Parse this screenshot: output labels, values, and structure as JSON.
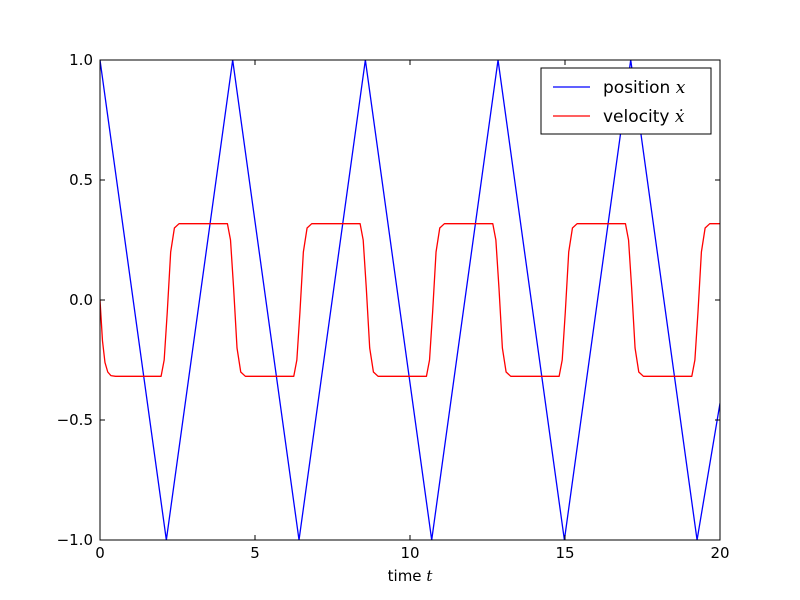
{
  "chart_data": {
    "type": "line",
    "title": "",
    "xlabel": "time",
    "xlabel_var": "t",
    "ylabel": "",
    "xlim": [
      0,
      20
    ],
    "ylim": [
      -1.0,
      1.0
    ],
    "xticks": [
      0,
      5,
      10,
      15,
      20
    ],
    "xtick_labels": [
      "0",
      "5",
      "10",
      "15",
      "20"
    ],
    "yticks": [
      -1.0,
      -0.5,
      0.0,
      0.5,
      1.0
    ],
    "ytick_labels": [
      "−1.0",
      "−0.5",
      "0.0",
      "0.5",
      "1.0"
    ],
    "grid": false,
    "legend_position": "top-right",
    "series": [
      {
        "name": "position",
        "name_var": "x",
        "color": "#0000ff",
        "x": [
          0,
          2.14,
          4.28,
          6.42,
          8.56,
          10.7,
          12.84,
          14.98,
          17.12,
          19.26,
          20.0
        ],
        "y": [
          1.0,
          -1.0,
          1.0,
          -1.0,
          1.0,
          -1.0,
          1.0,
          -1.0,
          1.0,
          -1.0,
          -0.43
        ]
      },
      {
        "name": "velocity",
        "name_var": "ẋ",
        "color": "#ff0000",
        "x": [
          0,
          0.08,
          0.16,
          0.25,
          0.35,
          0.5,
          1.97,
          2.07,
          2.17,
          2.28,
          2.4,
          2.55,
          4.11,
          4.21,
          4.31,
          4.42,
          4.54,
          4.69,
          6.25,
          6.35,
          6.45,
          6.56,
          6.68,
          6.83,
          8.39,
          8.49,
          8.59,
          8.7,
          8.82,
          8.97,
          10.53,
          10.63,
          10.73,
          10.84,
          10.96,
          11.11,
          12.67,
          12.77,
          12.87,
          12.98,
          13.1,
          13.25,
          14.81,
          14.91,
          15.01,
          15.12,
          15.24,
          15.39,
          16.95,
          17.05,
          17.15,
          17.26,
          17.38,
          17.53,
          19.09,
          19.19,
          19.29,
          19.4,
          19.52,
          19.67,
          20.0
        ],
        "y": [
          0.0,
          -0.17,
          -0.26,
          -0.3,
          -0.315,
          -0.318,
          -0.318,
          -0.25,
          -0.05,
          0.2,
          0.3,
          0.318,
          0.318,
          0.25,
          0.05,
          -0.2,
          -0.3,
          -0.318,
          -0.318,
          -0.25,
          -0.05,
          0.2,
          0.3,
          0.318,
          0.318,
          0.25,
          0.05,
          -0.2,
          -0.3,
          -0.318,
          -0.318,
          -0.25,
          -0.05,
          0.2,
          0.3,
          0.318,
          0.318,
          0.25,
          0.05,
          -0.2,
          -0.3,
          -0.318,
          -0.318,
          -0.25,
          -0.05,
          0.2,
          0.3,
          0.318,
          0.318,
          0.25,
          0.05,
          -0.2,
          -0.3,
          -0.318,
          -0.318,
          -0.25,
          -0.05,
          0.2,
          0.3,
          0.318,
          0.318
        ]
      }
    ]
  }
}
